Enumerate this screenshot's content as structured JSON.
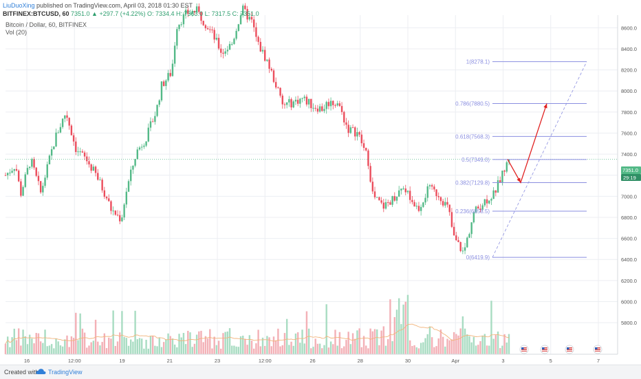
{
  "header": {
    "user": "LiuDuoXing",
    "published": " published on TradingView.com, April 03, 2018 01:30 EST",
    "symbol": "BITFINEX:BTCUSD, 60",
    "ohlc": "7351.0 ▲ +297.7 (+4.22%) O: 7334.4 H: 7363.0 L: 7317.5 C: 7351.0"
  },
  "panel": {
    "title": "Bitcoin / Dollar, 60, BITFINEX",
    "volume_label": "Vol (20)",
    "last_price": "7351.0",
    "countdown": "29:19"
  },
  "footer": {
    "created": "Created with",
    "brand": "TradingView"
  },
  "colors": {
    "up": "#53b987",
    "down": "#eb4d5c",
    "fib": "#8a8ee0",
    "arrow": "#e02020",
    "grid": "#eceef2"
  },
  "icons": [
    "us-flag-event-icon",
    "tradingview-cloud-icon"
  ],
  "chart_data": {
    "type": "candlestick",
    "title": "Bitcoin / Dollar, 60, BITFINEX",
    "y_axis_ticks": [
      "8600.0",
      "8400.0",
      "8200.0",
      "8000.0",
      "7800.0",
      "7600.0",
      "7400.0",
      "7200.0",
      "7000.0",
      "6800.0",
      "6600.0",
      "6400.0",
      "6200.0",
      "6000.0",
      "5800.0"
    ],
    "ylim": [
      5500,
      8720
    ],
    "x_axis_ticks": [
      "16",
      "12:00",
      "19",
      "21",
      "23",
      "12:00",
      "26",
      "28",
      "30",
      "Apr",
      "3",
      "5",
      "7"
    ],
    "price_path": [
      [
        0,
        7200
      ],
      [
        0.02,
        7300
      ],
      [
        0.03,
        7020
      ],
      [
        0.05,
        7350
      ],
      [
        0.07,
        7030
      ],
      [
        0.09,
        7400
      ],
      [
        0.1,
        7570
      ],
      [
        0.12,
        7800
      ],
      [
        0.14,
        7450
      ],
      [
        0.16,
        7350
      ],
      [
        0.18,
        7200
      ],
      [
        0.2,
        7000
      ],
      [
        0.21,
        6870
      ],
      [
        0.23,
        6780
      ],
      [
        0.24,
        7050
      ],
      [
        0.26,
        7420
      ],
      [
        0.28,
        7560
      ],
      [
        0.3,
        7820
      ],
      [
        0.31,
        8050
      ],
      [
        0.33,
        8180
      ],
      [
        0.34,
        8620
      ],
      [
        0.36,
        8740
      ],
      [
        0.38,
        8760
      ],
      [
        0.39,
        8690
      ],
      [
        0.41,
        8550
      ],
      [
        0.43,
        8360
      ],
      [
        0.45,
        8450
      ],
      [
        0.47,
        8780
      ],
      [
        0.49,
        8650
      ],
      [
        0.5,
        8460
      ],
      [
        0.52,
        8280
      ],
      [
        0.54,
        8020
      ],
      [
        0.55,
        7860
      ],
      [
        0.57,
        7890
      ],
      [
        0.59,
        7930
      ],
      [
        0.61,
        7860
      ],
      [
        0.63,
        7830
      ],
      [
        0.64,
        7890
      ],
      [
        0.66,
        7890
      ],
      [
        0.68,
        7640
      ],
      [
        0.7,
        7600
      ],
      [
        0.72,
        7350
      ],
      [
        0.73,
        7000
      ],
      [
        0.75,
        6900
      ],
      [
        0.77,
        6980
      ],
      [
        0.79,
        7100
      ],
      [
        0.81,
        6940
      ],
      [
        0.82,
        6880
      ],
      [
        0.84,
        7070
      ],
      [
        0.86,
        7020
      ],
      [
        0.88,
        6880
      ],
      [
        0.89,
        6610
      ],
      [
        0.91,
        6460
      ],
      [
        0.93,
        6840
      ],
      [
        0.95,
        6950
      ],
      [
        0.97,
        7020
      ],
      [
        1,
        7351
      ]
    ],
    "fibonacci": [
      {
        "label": "1(8278.1)",
        "value": 8278.1
      },
      {
        "label": "0.786(7880.5)",
        "value": 7880.5
      },
      {
        "label": "0.618(7568.3)",
        "value": 7568.3
      },
      {
        "label": "0.5(7349.0)",
        "value": 7349.0
      },
      {
        "label": "0.382(7129.8)",
        "value": 7129.8
      },
      {
        "label": "0.236(6858.5)",
        "value": 6858.5
      },
      {
        "label": "0(6419.9)",
        "value": 6419.9
      }
    ],
    "projection_path": [
      7351,
      7130,
      7880.5
    ],
    "volume": "overlay histogram at bottom with moving average (Vol 20)"
  }
}
